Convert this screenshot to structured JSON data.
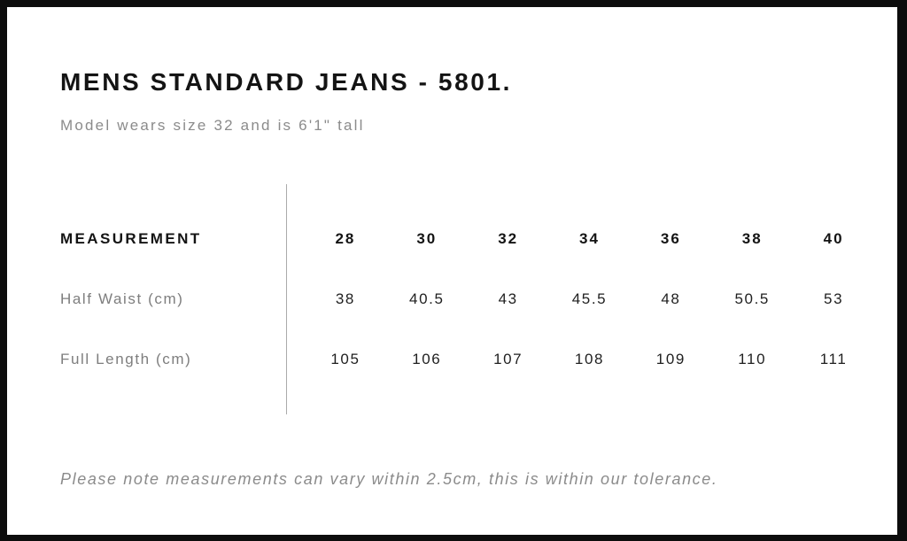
{
  "header": {
    "title": "MENS STANDARD JEANS - 5801.",
    "subtitle": "Model wears size 32 and is 6'1\" tall"
  },
  "size_chart": {
    "header_label": "MEASUREMENT",
    "sizes": [
      "28",
      "30",
      "32",
      "34",
      "36",
      "38",
      "40"
    ],
    "rows": [
      {
        "label": "Half Waist (cm)",
        "values": [
          "38",
          "40.5",
          "43",
          "45.5",
          "48",
          "50.5",
          "53"
        ]
      },
      {
        "label": "Full Length (cm)",
        "values": [
          "105",
          "106",
          "107",
          "108",
          "109",
          "110",
          "111"
        ]
      }
    ]
  },
  "footer": {
    "note": "Please note measurements can vary within 2.5cm, this is within our tolerance."
  },
  "colors": {
    "ink": "#141414",
    "gray": "#8b8b8b",
    "label-gray": "#7e7e7e",
    "divider": "#ababab",
    "frame": "#0d0d0d",
    "bg": "#ffffff"
  }
}
